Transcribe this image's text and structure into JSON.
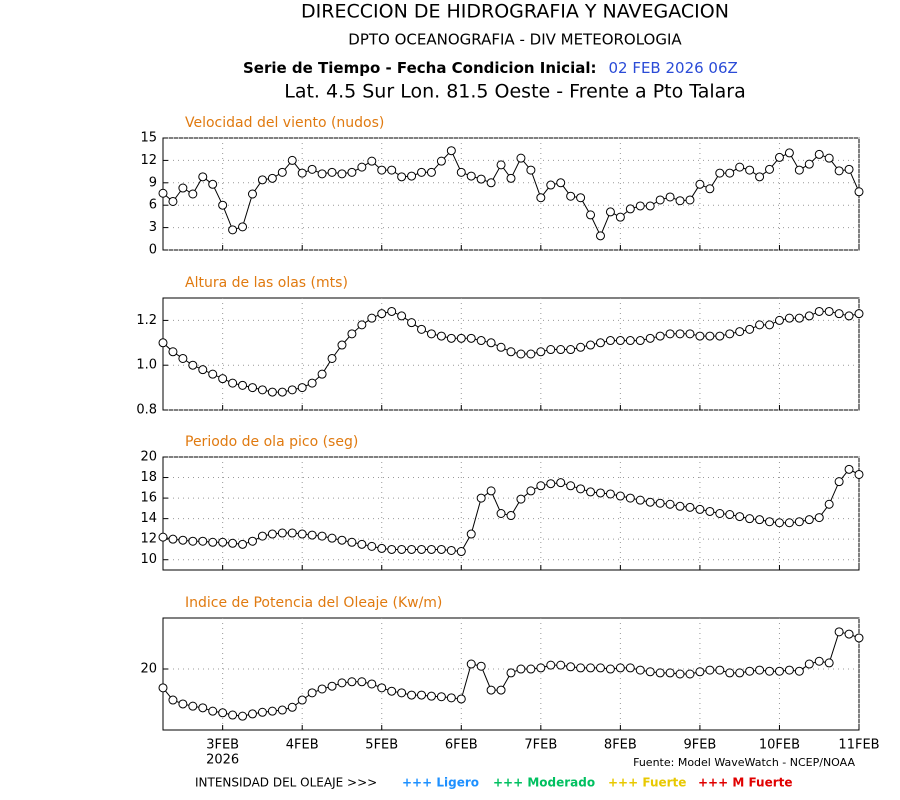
{
  "header": {
    "title": "DIRECCION DE HIDROGRAFIA Y NAVEGACION",
    "subtitle": "DPTO OCEANOGRAFIA - DIV METEOROLOGIA",
    "run_label": "Serie de Tiempo - Fecha Condicion Inicial:",
    "run_date": "02 FEB 2026 06Z",
    "location": "Lat. 4.5 Sur  Lon. 81.5 Oeste - Frente a Pto Talara"
  },
  "chart_data": [
    {
      "type": "line",
      "title": "Velocidad del viento (nudos)",
      "color": "#000000",
      "grid": true,
      "x": [
        2.25,
        2.375,
        2.5,
        2.625,
        2.75,
        2.875,
        3,
        3.125,
        3.25,
        3.375,
        3.5,
        3.625,
        3.75,
        3.875,
        4,
        4.125,
        4.25,
        4.375,
        4.5,
        4.625,
        4.75,
        4.875,
        5,
        5.125,
        5.25,
        5.375,
        5.5,
        5.625,
        5.75,
        5.875,
        6,
        6.125,
        6.25,
        6.375,
        6.5,
        6.625,
        6.75,
        6.875,
        7,
        7.125,
        7.25,
        7.375,
        7.5,
        7.625,
        7.75,
        7.875,
        8,
        8.125,
        8.25,
        8.375,
        8.5,
        8.625,
        8.75,
        8.875,
        9,
        9.125,
        9.25,
        9.375,
        9.5,
        9.625,
        9.75,
        9.875,
        10,
        10.125,
        10.25,
        10.375,
        10.5,
        10.625,
        10.75,
        10.875,
        11
      ],
      "values": [
        7.6,
        6.5,
        8.3,
        7.5,
        9.8,
        8.8,
        6.0,
        2.7,
        3.1,
        7.5,
        9.4,
        9.6,
        10.4,
        12.0,
        10.3,
        10.8,
        10.2,
        10.4,
        10.2,
        10.4,
        11.1,
        11.9,
        10.7,
        10.7,
        9.8,
        9.9,
        10.4,
        10.4,
        11.9,
        13.3,
        10.4,
        9.9,
        9.5,
        9.0,
        11.4,
        9.6,
        12.3,
        10.7,
        7.0,
        8.7,
        9.0,
        7.2,
        7.0,
        4.7,
        1.9,
        5.1,
        4.4,
        5.5,
        5.9,
        5.9,
        6.7,
        7.1,
        6.6,
        6.7,
        8.8,
        8.2,
        10.3,
        10.3,
        11.1,
        10.7,
        9.8,
        10.8,
        12.4,
        13.0,
        10.7,
        11.5,
        12.8,
        12.3,
        10.6,
        10.8,
        7.8
      ],
      "xlim": [
        2.25,
        11
      ],
      "xticks": [
        3,
        4,
        5,
        6,
        7,
        8,
        9,
        10,
        11
      ],
      "ylim": [
        0,
        15
      ],
      "yticks": [
        0,
        3,
        6,
        9,
        12,
        15
      ]
    },
    {
      "type": "line",
      "title": "Altura de las olas (mts)",
      "color": "#000000",
      "grid": true,
      "x": [
        2.25,
        2.375,
        2.5,
        2.625,
        2.75,
        2.875,
        3,
        3.125,
        3.25,
        3.375,
        3.5,
        3.625,
        3.75,
        3.875,
        4,
        4.125,
        4.25,
        4.375,
        4.5,
        4.625,
        4.75,
        4.875,
        5,
        5.125,
        5.25,
        5.375,
        5.5,
        5.625,
        5.75,
        5.875,
        6,
        6.125,
        6.25,
        6.375,
        6.5,
        6.625,
        6.75,
        6.875,
        7,
        7.125,
        7.25,
        7.375,
        7.5,
        7.625,
        7.75,
        7.875,
        8,
        8.125,
        8.25,
        8.375,
        8.5,
        8.625,
        8.75,
        8.875,
        9,
        9.125,
        9.25,
        9.375,
        9.5,
        9.625,
        9.75,
        9.875,
        10,
        10.125,
        10.25,
        10.375,
        10.5,
        10.625,
        10.75,
        10.875,
        11
      ],
      "values": [
        1.1,
        1.06,
        1.03,
        1.0,
        0.98,
        0.96,
        0.94,
        0.92,
        0.91,
        0.9,
        0.89,
        0.88,
        0.88,
        0.89,
        0.9,
        0.92,
        0.96,
        1.03,
        1.09,
        1.14,
        1.18,
        1.21,
        1.23,
        1.24,
        1.22,
        1.19,
        1.16,
        1.14,
        1.13,
        1.12,
        1.12,
        1.12,
        1.11,
        1.1,
        1.08,
        1.06,
        1.05,
        1.05,
        1.06,
        1.07,
        1.07,
        1.07,
        1.08,
        1.09,
        1.1,
        1.11,
        1.11,
        1.11,
        1.11,
        1.12,
        1.13,
        1.14,
        1.14,
        1.14,
        1.13,
        1.13,
        1.13,
        1.14,
        1.15,
        1.16,
        1.18,
        1.18,
        1.2,
        1.21,
        1.21,
        1.22,
        1.24,
        1.24,
        1.23,
        1.22,
        1.23
      ],
      "xlim": [
        2.25,
        11
      ],
      "xticks": [
        3,
        4,
        5,
        6,
        7,
        8,
        9,
        10,
        11
      ],
      "ylim": [
        0.8,
        1.3
      ],
      "yticks": [
        0.8,
        {
          "value": 1,
          "label": "1.0"
        },
        1.2
      ]
    },
    {
      "type": "line",
      "title": "Periodo de ola pico (seg)",
      "color": "#000000",
      "grid": true,
      "x": [
        2.25,
        2.375,
        2.5,
        2.625,
        2.75,
        2.875,
        3,
        3.125,
        3.25,
        3.375,
        3.5,
        3.625,
        3.75,
        3.875,
        4,
        4.125,
        4.25,
        4.375,
        4.5,
        4.625,
        4.75,
        4.875,
        5,
        5.125,
        5.25,
        5.375,
        5.5,
        5.625,
        5.75,
        5.875,
        6,
        6.125,
        6.25,
        6.375,
        6.5,
        6.625,
        6.75,
        6.875,
        7,
        7.125,
        7.25,
        7.375,
        7.5,
        7.625,
        7.75,
        7.875,
        8,
        8.125,
        8.25,
        8.375,
        8.5,
        8.625,
        8.75,
        8.875,
        9,
        9.125,
        9.25,
        9.375,
        9.5,
        9.625,
        9.75,
        9.875,
        10,
        10.125,
        10.25,
        10.375,
        10.5,
        10.625,
        10.75,
        10.875,
        11
      ],
      "values": [
        12.2,
        12.0,
        11.9,
        11.8,
        11.8,
        11.7,
        11.7,
        11.6,
        11.5,
        11.8,
        12.3,
        12.5,
        12.6,
        12.6,
        12.5,
        12.4,
        12.3,
        12.1,
        11.9,
        11.7,
        11.5,
        11.3,
        11.1,
        11.0,
        11.0,
        11.0,
        11.0,
        11.0,
        11.0,
        10.9,
        10.8,
        12.5,
        16.0,
        16.7,
        14.5,
        14.3,
        15.9,
        16.7,
        17.2,
        17.4,
        17.5,
        17.2,
        16.9,
        16.6,
        16.5,
        16.4,
        16.2,
        16.0,
        15.8,
        15.6,
        15.5,
        15.4,
        15.2,
        15.1,
        14.9,
        14.7,
        14.5,
        14.4,
        14.2,
        14.0,
        13.9,
        13.7,
        13.6,
        13.6,
        13.7,
        13.9,
        14.1,
        15.4,
        17.6,
        18.8,
        18.3
      ],
      "xlim": [
        2.25,
        11
      ],
      "xticks": [
        3,
        4,
        5,
        6,
        7,
        8,
        9,
        10,
        11
      ],
      "ylim": [
        9,
        20
      ],
      "yticks": [
        10,
        12,
        14,
        16,
        18,
        20
      ]
    },
    {
      "type": "line",
      "title": "Indice de Potencia del Oleaje (Kw/m)",
      "color": "#000000",
      "grid": true,
      "x": [
        2.25,
        2.375,
        2.5,
        2.625,
        2.75,
        2.875,
        3,
        3.125,
        3.25,
        3.375,
        3.5,
        3.625,
        3.75,
        3.875,
        4,
        4.125,
        4.25,
        4.375,
        4.5,
        4.625,
        4.75,
        4.875,
        5,
        5.125,
        5.25,
        5.375,
        5.5,
        5.625,
        5.75,
        5.875,
        6,
        6.125,
        6.25,
        6.375,
        6.5,
        6.625,
        6.75,
        6.875,
        7,
        7.125,
        7.25,
        7.375,
        7.5,
        7.625,
        7.75,
        7.875,
        8,
        8.125,
        8.25,
        8.375,
        8.5,
        8.625,
        8.75,
        8.875,
        9,
        9.125,
        9.25,
        9.375,
        9.5,
        9.625,
        9.75,
        9.875,
        10,
        10.125,
        10.25,
        10.375,
        10.5,
        10.625,
        10.75,
        10.875,
        11
      ],
      "values": [
        16.6,
        14.4,
        13.7,
        13.3,
        13.0,
        12.4,
        12.1,
        11.7,
        11.5,
        11.9,
        12.2,
        12.4,
        12.6,
        13.1,
        14.4,
        15.7,
        16.4,
        16.9,
        17.5,
        17.7,
        17.7,
        17.3,
        16.6,
        16.0,
        15.7,
        15.3,
        15.3,
        15.1,
        15.0,
        14.8,
        14.6,
        20.9,
        20.5,
        16.2,
        16.2,
        19.3,
        20.0,
        20.0,
        20.2,
        20.7,
        20.7,
        20.4,
        20.2,
        20.2,
        20.2,
        20.0,
        20.2,
        20.2,
        19.8,
        19.5,
        19.3,
        19.3,
        19.1,
        19.1,
        19.5,
        19.8,
        19.8,
        19.3,
        19.3,
        19.6,
        19.8,
        19.6,
        19.6,
        19.8,
        19.6,
        20.9,
        21.4,
        21.1,
        26.7,
        26.3,
        25.6
      ],
      "xlim": [
        2.25,
        11
      ],
      "xticks": [
        {
          "value": 3,
          "label": "3FEB"
        },
        {
          "value": 4,
          "label": "4FEB"
        },
        {
          "value": 5,
          "label": "5FEB"
        },
        {
          "value": 6,
          "label": "6FEB"
        },
        {
          "value": 7,
          "label": "7FEB"
        },
        {
          "value": 8,
          "label": "8FEB"
        },
        {
          "value": 9,
          "label": "9FEB"
        },
        {
          "value": 10,
          "label": "10FEB"
        },
        {
          "value": 11,
          "label": "11FEB"
        }
      ],
      "x_sublabel": "2026",
      "ylim": [
        9,
        29.2
      ],
      "yticks": [
        20
      ]
    }
  ],
  "footer": {
    "source": "Fuente: Model WaveWatch - NCEP/NOAA",
    "intensity_label": "INTENSIDAD DEL OLEAJE >>>",
    "legend": [
      {
        "label": "+++ Ligero",
        "color": "#1e90ff"
      },
      {
        "label": "+++ Moderado",
        "color": "#00c060"
      },
      {
        "label": "+++ Fuerte",
        "color": "#e8c800"
      },
      {
        "label": "+++ M Fuerte",
        "color": "#e00000"
      }
    ]
  }
}
